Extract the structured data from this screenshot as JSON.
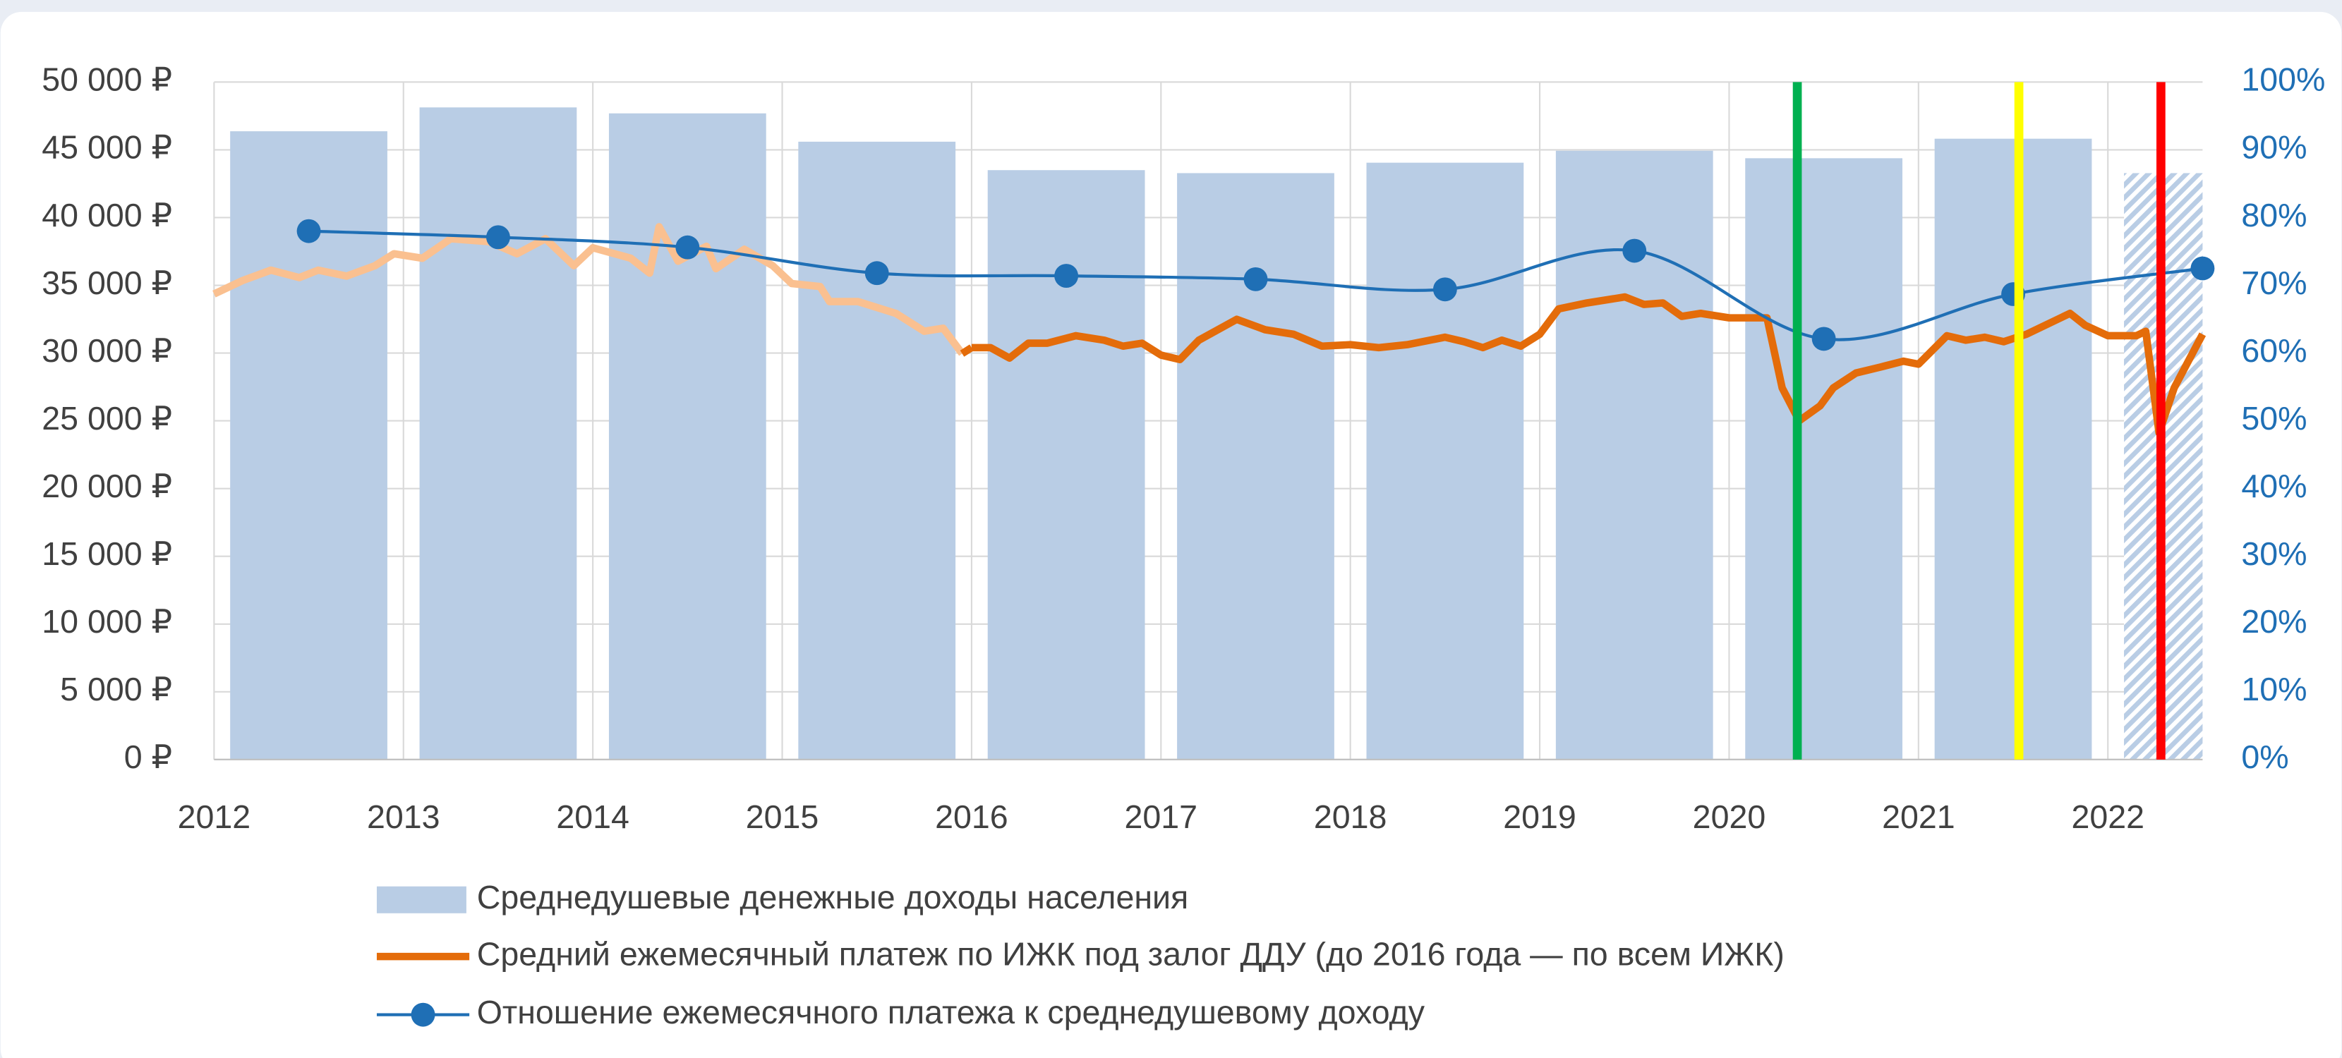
{
  "chart_data": {
    "type": "combo",
    "xlim": [
      2012,
      2022.5
    ],
    "xticks": [
      2012,
      2013,
      2014,
      2015,
      2016,
      2017,
      2018,
      2019,
      2020,
      2021,
      2022
    ],
    "ylim": [
      0,
      50000
    ],
    "yticks": [
      {
        "value": 0,
        "label": "0 ₽"
      },
      {
        "value": 5000,
        "label": "5 000 ₽"
      },
      {
        "value": 10000,
        "label": "10 000 ₽"
      },
      {
        "value": 15000,
        "label": "15 000 ₽"
      },
      {
        "value": 20000,
        "label": "20 000 ₽"
      },
      {
        "value": 25000,
        "label": "25 000 ₽"
      },
      {
        "value": 30000,
        "label": "30 000 ₽"
      },
      {
        "value": 35000,
        "label": "35 000 ₽"
      },
      {
        "value": 40000,
        "label": "40 000 ₽"
      },
      {
        "value": 45000,
        "label": "45 000 ₽"
      },
      {
        "value": 50000,
        "label": "50 000 ₽"
      }
    ],
    "y2lim": [
      0,
      100
    ],
    "y2ticks": [
      {
        "value": 0,
        "label": "0%"
      },
      {
        "value": 10,
        "label": "10%"
      },
      {
        "value": 20,
        "label": "20%"
      },
      {
        "value": 30,
        "label": "30%"
      },
      {
        "value": 40,
        "label": "40%"
      },
      {
        "value": 50,
        "label": "50%"
      },
      {
        "value": 60,
        "label": "60%"
      },
      {
        "value": 70,
        "label": "70%"
      },
      {
        "value": 80,
        "label": "80%"
      },
      {
        "value": 90,
        "label": "90%"
      },
      {
        "value": 100,
        "label": "100%"
      }
    ],
    "grid": true,
    "hatch_last": true,
    "series": [
      {
        "name": "Среднедушевые денежные доходы населения",
        "kind": "bar",
        "color": "#b9cde5",
        "x": [
          2012.5,
          2013.5,
          2014.5,
          2015.5,
          2016.5,
          2017.5,
          2018.5,
          2019.5,
          2020.5,
          2021.5,
          2022.5
        ],
        "values": [
          46370,
          48130,
          47690,
          45600,
          43500,
          43280,
          44050,
          44930,
          44380,
          45820,
          43280
        ]
      },
      {
        "name": "Средний ежемесячный платеж по ИЖК под залог ДДУ (до 2016 года — по всем ИЖК)",
        "kind": "line",
        "color": "#e46c0a",
        "early_color": "#fac090",
        "early_until": 2016,
        "x": [
          2012.0,
          2012.15,
          2012.3,
          2012.45,
          2012.55,
          2012.7,
          2012.85,
          2012.95,
          2013.1,
          2013.25,
          2013.45,
          2013.6,
          2013.75,
          2013.9,
          2014.0,
          2014.2,
          2014.3,
          2014.35,
          2014.45,
          2014.6,
          2014.65,
          2014.8,
          2014.95,
          2015.05,
          2015.2,
          2015.25,
          2015.4,
          2015.6,
          2015.75,
          2015.85,
          2015.95,
          2016.0,
          2016.1,
          2016.2,
          2016.3,
          2016.4,
          2016.55,
          2016.7,
          2016.8,
          2016.9,
          2017.0,
          2017.1,
          2017.2,
          2017.4,
          2017.55,
          2017.7,
          2017.85,
          2018.0,
          2018.15,
          2018.3,
          2018.5,
          2018.6,
          2018.7,
          2018.8,
          2018.9,
          2019.0,
          2019.1,
          2019.25,
          2019.45,
          2019.55,
          2019.65,
          2019.75,
          2019.85,
          2020.0,
          2020.2,
          2020.28,
          2020.37,
          2020.48,
          2020.55,
          2020.67,
          2020.8,
          2020.92,
          2021.0,
          2021.15,
          2021.25,
          2021.35,
          2021.45,
          2021.57,
          2021.8,
          2021.88,
          2022.0,
          2022.15,
          2022.2,
          2022.27,
          2022.35,
          2022.5
        ],
        "values": [
          34360,
          35350,
          36120,
          35570,
          36120,
          35680,
          36450,
          37330,
          37000,
          38440,
          38220,
          37330,
          38440,
          36450,
          37770,
          37000,
          35900,
          39320,
          36780,
          37880,
          36230,
          37660,
          36450,
          35130,
          34910,
          33800,
          33800,
          32930,
          31610,
          31830,
          29960,
          30400,
          30400,
          29630,
          30730,
          30730,
          31280,
          30950,
          30510,
          30730,
          29850,
          29520,
          30950,
          32490,
          31720,
          31390,
          30510,
          30620,
          30400,
          30620,
          31170,
          30840,
          30400,
          30950,
          30510,
          31390,
          33260,
          33700,
          34140,
          33590,
          33700,
          32710,
          32930,
          32600,
          32600,
          27430,
          25000,
          26100,
          27430,
          28530,
          28970,
          29400,
          29180,
          31280,
          30950,
          31170,
          30840,
          31390,
          32930,
          32050,
          31280,
          31280,
          31610,
          24120,
          27430,
          31390
        ]
      },
      {
        "name": "Отношение ежемесячного платежа к среднедушевому доходу",
        "kind": "line-marker",
        "axis": "y2",
        "color": "#1f6fb5",
        "x": [
          2012.5,
          2013.5,
          2014.5,
          2015.5,
          2016.5,
          2017.5,
          2018.5,
          2019.5,
          2020.5,
          2021.5,
          2022.5
        ],
        "values": [
          78.0,
          77.1,
          75.6,
          71.8,
          71.4,
          70.9,
          69.4,
          75.1,
          62.1,
          68.7,
          72.5
        ]
      }
    ],
    "vlines": [
      {
        "x": 2020.36,
        "color": "#00b050"
      },
      {
        "x": 2021.53,
        "color": "#ffff00"
      },
      {
        "x": 2022.28,
        "color": "#ff0000"
      }
    ]
  }
}
